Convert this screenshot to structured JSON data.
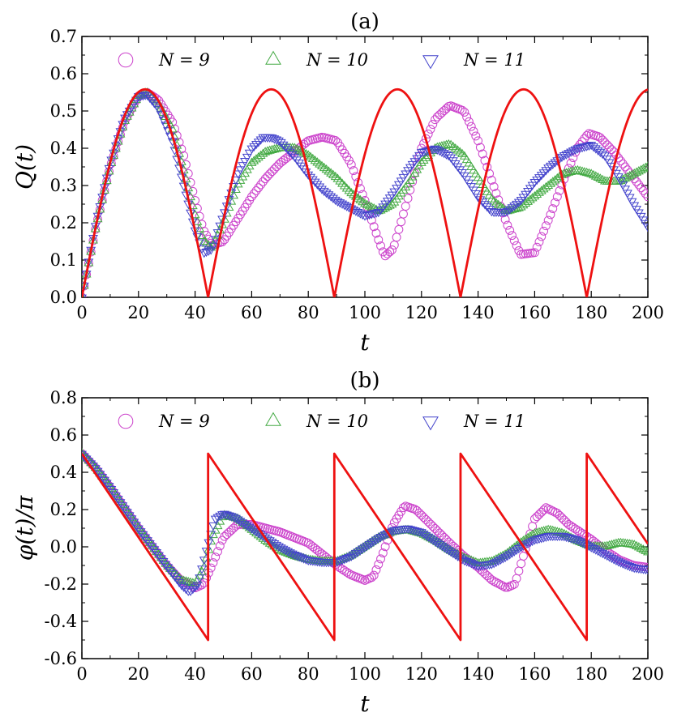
{
  "chart_data": [
    {
      "type": "line",
      "title": "(a)",
      "xlabel": "t",
      "ylabel": "Q(t)",
      "xlim": [
        0,
        200
      ],
      "ylim": [
        0,
        0.7
      ],
      "xticks": [
        0,
        20,
        40,
        60,
        80,
        100,
        120,
        140,
        160,
        180,
        200
      ],
      "xtick_labels": [
        "0",
        "20",
        "40",
        "60",
        "80",
        "100",
        "120",
        "140",
        "160",
        "180",
        "200"
      ],
      "yticks": [
        0,
        0.1,
        0.2,
        0.3,
        0.4,
        0.5,
        0.6,
        0.7
      ],
      "ytick_labels": [
        "0.0",
        "0.1",
        "0.2",
        "0.3",
        "0.4",
        "0.5",
        "0.6",
        "0.7"
      ],
      "legend_position": "top",
      "series": [
        {
          "name": "N = 9",
          "marker": "circle",
          "color": "#cc44cc",
          "x": [
            0,
            5,
            10,
            15,
            20,
            23,
            27,
            32,
            36,
            40,
            43,
            46,
            50,
            55,
            60,
            65,
            70,
            75,
            80,
            85,
            90,
            95,
            100,
            105,
            107,
            110,
            115,
            120,
            125,
            130,
            135,
            140,
            145,
            150,
            155,
            160,
            165,
            170,
            175,
            179,
            183,
            188,
            193,
            198,
            200
          ],
          "y": [
            0,
            0.19,
            0.35,
            0.47,
            0.54,
            0.55,
            0.53,
            0.47,
            0.38,
            0.26,
            0.18,
            0.14,
            0.15,
            0.21,
            0.27,
            0.32,
            0.36,
            0.39,
            0.42,
            0.43,
            0.42,
            0.36,
            0.26,
            0.15,
            0.11,
            0.13,
            0.26,
            0.4,
            0.48,
            0.515,
            0.5,
            0.42,
            0.31,
            0.2,
            0.115,
            0.12,
            0.21,
            0.31,
            0.4,
            0.44,
            0.43,
            0.39,
            0.34,
            0.29,
            0.27
          ]
        },
        {
          "name": "N = 10",
          "marker": "triangle-up",
          "color": "#44aa44",
          "x": [
            0,
            5,
            10,
            15,
            20,
            23,
            27,
            32,
            36,
            40,
            43,
            46,
            50,
            55,
            60,
            65,
            70,
            75,
            80,
            85,
            90,
            95,
            100,
            105,
            110,
            115,
            120,
            125,
            130,
            135,
            140,
            145,
            150,
            155,
            160,
            165,
            170,
            175,
            180,
            185,
            190,
            195,
            200
          ],
          "y": [
            0,
            0.19,
            0.35,
            0.47,
            0.54,
            0.55,
            0.52,
            0.45,
            0.34,
            0.22,
            0.15,
            0.13,
            0.2,
            0.3,
            0.36,
            0.39,
            0.4,
            0.4,
            0.38,
            0.35,
            0.32,
            0.28,
            0.25,
            0.23,
            0.25,
            0.3,
            0.36,
            0.4,
            0.41,
            0.38,
            0.32,
            0.26,
            0.23,
            0.24,
            0.27,
            0.3,
            0.33,
            0.34,
            0.33,
            0.31,
            0.31,
            0.33,
            0.35
          ]
        },
        {
          "name": "N = 11",
          "marker": "triangle-down",
          "color": "#4444cc",
          "x": [
            0,
            5,
            10,
            15,
            20,
            23,
            27,
            32,
            36,
            40,
            43,
            46,
            50,
            55,
            60,
            64,
            67,
            70,
            75,
            80,
            85,
            90,
            95,
            100,
            105,
            110,
            115,
            120,
            125,
            130,
            135,
            140,
            145,
            150,
            155,
            160,
            165,
            170,
            175,
            180,
            185,
            190,
            195,
            200
          ],
          "y": [
            0,
            0.2,
            0.36,
            0.48,
            0.54,
            0.545,
            0.51,
            0.42,
            0.3,
            0.18,
            0.12,
            0.13,
            0.22,
            0.33,
            0.4,
            0.43,
            0.43,
            0.42,
            0.38,
            0.33,
            0.29,
            0.26,
            0.24,
            0.22,
            0.23,
            0.28,
            0.34,
            0.39,
            0.4,
            0.38,
            0.33,
            0.27,
            0.23,
            0.23,
            0.26,
            0.31,
            0.35,
            0.38,
            0.4,
            0.41,
            0.38,
            0.32,
            0.25,
            0.19
          ]
        },
        {
          "name": "",
          "marker": "none",
          "color": "#ee1111",
          "period": 44.6,
          "amplitude": 0.558,
          "shape": "abs-sine"
        }
      ]
    },
    {
      "type": "line",
      "title": "(b)",
      "xlabel": "t",
      "ylabel": "φ(t)/π",
      "xlim": [
        0,
        200
      ],
      "ylim": [
        -0.6,
        0.8
      ],
      "xticks": [
        0,
        20,
        40,
        60,
        80,
        100,
        120,
        140,
        160,
        180,
        200
      ],
      "xtick_labels": [
        "0",
        "20",
        "40",
        "60",
        "80",
        "100",
        "120",
        "140",
        "160",
        "180",
        "200"
      ],
      "yticks": [
        -0.6,
        -0.4,
        -0.2,
        0,
        0.2,
        0.4,
        0.6,
        0.8
      ],
      "ytick_labels": [
        "-0.6",
        "-0.4",
        "-0.2",
        "0.0",
        "0.2",
        "0.4",
        "0.6",
        "0.8"
      ],
      "legend_position": "top",
      "series": [
        {
          "name": "N = 9",
          "marker": "circle",
          "color": "#cc44cc",
          "x": [
            0,
            5,
            10,
            15,
            20,
            25,
            30,
            35,
            40,
            43,
            46,
            50,
            55,
            60,
            65,
            70,
            75,
            80,
            85,
            90,
            95,
            100,
            103,
            106,
            110,
            114,
            118,
            122,
            126,
            130,
            135,
            140,
            145,
            150,
            153,
            156,
            160,
            164,
            168,
            172,
            176,
            180,
            185,
            190,
            195,
            200
          ],
          "y": [
            0.5,
            0.42,
            0.32,
            0.21,
            0.1,
            0.0,
            -0.1,
            -0.18,
            -0.22,
            -0.2,
            -0.1,
            0.05,
            0.12,
            0.12,
            0.1,
            0.08,
            0.05,
            0.02,
            -0.04,
            -0.1,
            -0.15,
            -0.18,
            -0.16,
            -0.05,
            0.12,
            0.22,
            0.2,
            0.14,
            0.08,
            0.02,
            -0.05,
            -0.11,
            -0.18,
            -0.22,
            -0.2,
            -0.05,
            0.15,
            0.21,
            0.18,
            0.12,
            0.08,
            0.04,
            -0.02,
            -0.07,
            -0.1,
            -0.11
          ]
        },
        {
          "name": "N = 10",
          "marker": "triangle-up",
          "color": "#44aa44",
          "x": [
            0,
            5,
            10,
            15,
            20,
            25,
            30,
            35,
            40,
            43,
            46,
            50,
            55,
            60,
            65,
            70,
            75,
            80,
            85,
            90,
            95,
            100,
            105,
            110,
            115,
            120,
            125,
            130,
            135,
            140,
            145,
            150,
            155,
            160,
            165,
            170,
            175,
            180,
            185,
            190,
            195,
            200
          ],
          "y": [
            0.5,
            0.42,
            0.32,
            0.21,
            0.1,
            0.0,
            -0.1,
            -0.18,
            -0.2,
            -0.12,
            0.05,
            0.17,
            0.15,
            0.09,
            0.03,
            -0.02,
            -0.05,
            -0.07,
            -0.08,
            -0.08,
            -0.05,
            0.0,
            0.05,
            0.08,
            0.09,
            0.07,
            0.03,
            -0.02,
            -0.06,
            -0.09,
            -0.08,
            -0.04,
            0.02,
            0.07,
            0.09,
            0.07,
            0.03,
            0.0,
            0.0,
            0.02,
            0.01,
            -0.03
          ]
        },
        {
          "name": "N = 11",
          "marker": "triangle-down",
          "color": "#4444cc",
          "x": [
            0,
            5,
            10,
            15,
            20,
            25,
            30,
            35,
            38,
            41,
            44,
            47,
            50,
            54,
            58,
            62,
            66,
            70,
            75,
            80,
            85,
            90,
            95,
            100,
            105,
            110,
            115,
            120,
            125,
            130,
            135,
            140,
            145,
            150,
            155,
            160,
            165,
            170,
            175,
            180,
            185,
            190,
            195,
            200
          ],
          "y": [
            0.5,
            0.42,
            0.32,
            0.21,
            0.1,
            0.0,
            -0.1,
            -0.2,
            -0.24,
            -0.2,
            -0.02,
            0.15,
            0.18,
            0.16,
            0.12,
            0.08,
            0.04,
            0.0,
            -0.04,
            -0.07,
            -0.08,
            -0.08,
            -0.05,
            0.0,
            0.05,
            0.09,
            0.1,
            0.08,
            0.03,
            -0.02,
            -0.07,
            -0.1,
            -0.09,
            -0.05,
            0.0,
            0.04,
            0.06,
            0.06,
            0.04,
            0.0,
            -0.04,
            -0.08,
            -0.11,
            -0.12
          ]
        },
        {
          "name": "",
          "marker": "none",
          "color": "#ee1111",
          "period": 44.6,
          "start": 0.5,
          "end": -0.5,
          "shape": "sawtooth"
        }
      ]
    }
  ]
}
